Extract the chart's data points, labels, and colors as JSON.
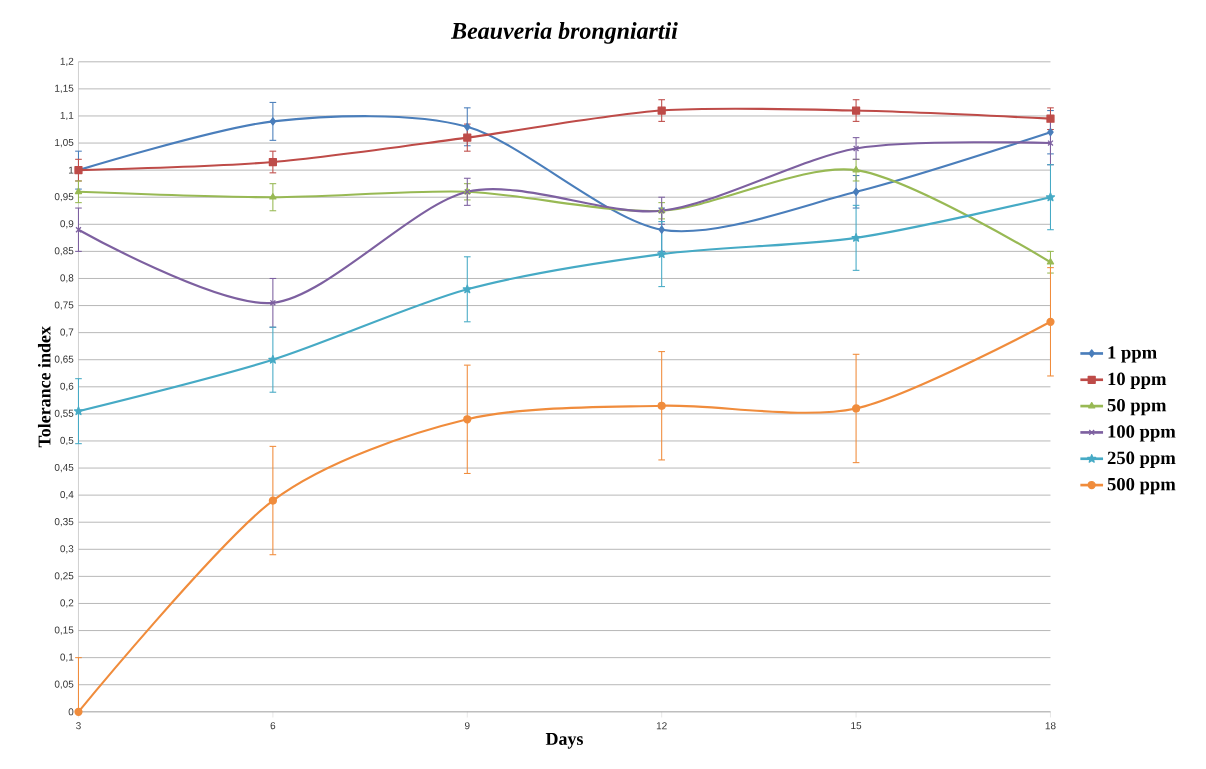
{
  "chart_data": {
    "type": "line",
    "title": "*Beauveria brongniartii*",
    "xlabel": "Days",
    "ylabel": "Tolerance index",
    "x": [
      3,
      6,
      9,
      12,
      15,
      18
    ],
    "series": [
      {
        "name": "1 ppm",
        "color": "#4a7ebb",
        "marker": "diamond",
        "values": [
          1.0,
          1.09,
          1.08,
          0.89,
          0.96,
          1.07
        ],
        "errors": [
          0.035,
          0.035,
          0.035,
          0.04,
          0.03,
          0.04
        ]
      },
      {
        "name": "10 ppm",
        "color": "#be4b48",
        "marker": "square",
        "values": [
          1.0,
          1.015,
          1.06,
          1.11,
          1.11,
          1.095
        ],
        "errors": [
          0.02,
          0.02,
          0.025,
          0.02,
          0.02,
          0.02
        ]
      },
      {
        "name": "50 ppm",
        "color": "#98b954",
        "marker": "triangle",
        "values": [
          0.96,
          0.95,
          0.96,
          0.925,
          1.0,
          0.83
        ],
        "errors": [
          0.02,
          0.025,
          0.015,
          0.015,
          0.02,
          0.02
        ]
      },
      {
        "name": "100 ppm",
        "color": "#7d60a0",
        "marker": "cross",
        "values": [
          0.89,
          0.755,
          0.96,
          0.925,
          1.04,
          1.05
        ],
        "errors": [
          0.04,
          0.045,
          0.025,
          0.025,
          0.02,
          0.04
        ]
      },
      {
        "name": "250 ppm",
        "color": "#46aac5",
        "marker": "star",
        "values": [
          0.555,
          0.65,
          0.78,
          0.845,
          0.875,
          0.95
        ],
        "errors": [
          0.06,
          0.06,
          0.06,
          0.06,
          0.06,
          0.06
        ]
      },
      {
        "name": "500 ppm",
        "color": "#f08c3c",
        "marker": "circle",
        "values": [
          0,
          0.39,
          0.54,
          0.565,
          0.56,
          0.72
        ],
        "errors": [
          [
            0,
            0.1
          ],
          0.1,
          0.1,
          0.1,
          0.1,
          0.1
        ]
      }
    ],
    "xlim": [
      3,
      18
    ],
    "xticks": [
      3,
      6,
      9,
      12,
      15,
      18
    ],
    "ylim": [
      0,
      1.2
    ],
    "yticks": [
      {
        "value": 0,
        "label": "0"
      },
      {
        "value": 0.05,
        "label": "0,05"
      },
      {
        "value": 0.1,
        "label": "0,1"
      },
      {
        "value": 0.15,
        "label": "0,15"
      },
      {
        "value": 0.2,
        "label": "0,2"
      },
      {
        "value": 0.25,
        "label": "0,25"
      },
      {
        "value": 0.3,
        "label": "0,3"
      },
      {
        "value": 0.35,
        "label": "0,35"
      },
      {
        "value": 0.4,
        "label": "0,4"
      },
      {
        "value": 0.45,
        "label": "0,45"
      },
      {
        "value": 0.5,
        "label": "0,5"
      },
      {
        "value": 0.55,
        "label": "0,55"
      },
      {
        "value": 0.6,
        "label": "0,6"
      },
      {
        "value": 0.65,
        "label": "0,65"
      },
      {
        "value": 0.7,
        "label": "0,7"
      },
      {
        "value": 0.75,
        "label": "0,75"
      },
      {
        "value": 0.8,
        "label": "0,8"
      },
      {
        "value": 0.85,
        "label": "0,85"
      },
      {
        "value": 0.9,
        "label": "0,9"
      },
      {
        "value": 0.95,
        "label": "0,95"
      },
      {
        "value": 1,
        "label": "1"
      },
      {
        "value": 1.05,
        "label": "1,05"
      },
      {
        "value": 1.1,
        "label": "1,1"
      },
      {
        "value": 1.15,
        "label": "1,15"
      },
      {
        "value": 1.2,
        "label": "1,2"
      }
    ],
    "grid": "y",
    "legend": "right",
    "line_style": "solid"
  }
}
